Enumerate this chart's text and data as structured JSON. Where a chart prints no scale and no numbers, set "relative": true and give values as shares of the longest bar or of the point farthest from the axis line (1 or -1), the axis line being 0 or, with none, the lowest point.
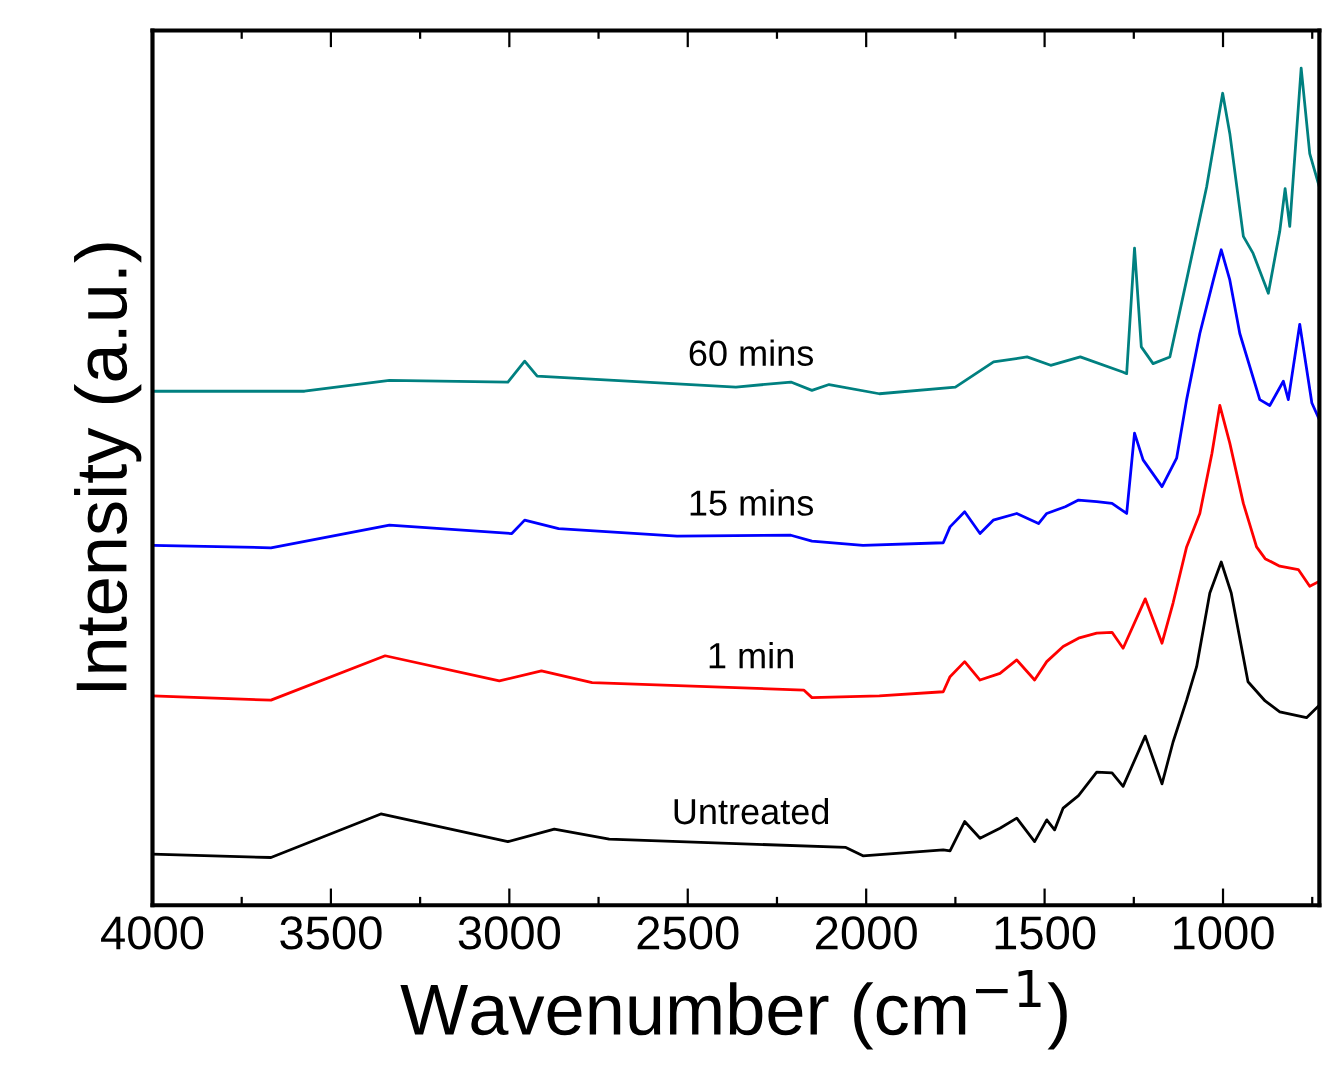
{
  "chart_data": {
    "type": "line",
    "relative": true,
    "xlabel": "Wavenumber (cm$^{−1}$)",
    "ylabel": "Intensity (a.u.)",
    "xlim": [
      4000,
      730
    ],
    "xticks": [
      4000,
      {
        "value": 3750,
        "label": null
      },
      3500,
      {
        "value": 3250,
        "label": null
      },
      3000,
      {
        "value": 2750,
        "label": null
      },
      2500,
      {
        "value": 2250,
        "label": null
      },
      2000,
      {
        "value": 1750,
        "label": null
      },
      1500,
      {
        "value": 1250,
        "label": null
      },
      1000,
      {
        "value": 750,
        "label": null
      }
    ],
    "grid": false,
    "legend": false,
    "tick_labels": "x",
    "series": [
      {
        "name": "Untreated",
        "color": "#000000",
        "x": [
          4000,
          3668,
          3360,
          3004,
          2874,
          2720,
          2057,
          2009,
          1784,
          1765,
          1724,
          1681,
          1625,
          1578,
          1528,
          1494,
          1472,
          1448,
          1405,
          1354,
          1311,
          1280,
          1218,
          1171,
          1140,
          1102,
          1074,
          1037,
          1005,
          977,
          930,
          882,
          841,
          766,
          730
        ],
        "values": [
          0.061,
          0.057,
          0.109,
          0.076,
          0.091,
          0.079,
          0.069,
          0.059,
          0.066,
          0.065,
          0.1,
          0.08,
          0.092,
          0.104,
          0.076,
          0.102,
          0.09,
          0.116,
          0.131,
          0.159,
          0.158,
          0.142,
          0.202,
          0.145,
          0.195,
          0.245,
          0.285,
          0.373,
          0.41,
          0.373,
          0.267,
          0.244,
          0.231,
          0.224,
          0.239
        ]
      },
      {
        "name": "1 min",
        "color": "#ff0000",
        "x": [
          4000,
          3668,
          3348,
          3028,
          2910,
          2768,
          2175,
          2152,
          1963,
          1784,
          1765,
          1724,
          1681,
          1625,
          1578,
          1528,
          1494,
          1448,
          1405,
          1354,
          1311,
          1280,
          1218,
          1171,
          1140,
          1102,
          1065,
          1031,
          1009,
          981,
          943,
          906,
          882,
          841,
          789,
          757,
          730
        ],
        "values": [
          0.25,
          0.245,
          0.298,
          0.268,
          0.28,
          0.266,
          0.257,
          0.248,
          0.25,
          0.255,
          0.273,
          0.291,
          0.269,
          0.277,
          0.293,
          0.269,
          0.291,
          0.309,
          0.319,
          0.325,
          0.326,
          0.307,
          0.366,
          0.313,
          0.361,
          0.428,
          0.468,
          0.54,
          0.597,
          0.552,
          0.48,
          0.428,
          0.414,
          0.405,
          0.401,
          0.381,
          0.387
        ]
      },
      {
        "name": "15 mins",
        "color": "#0000ff",
        "x": [
          4000,
          3668,
          3336,
          2993,
          2957,
          2862,
          2530,
          2211,
          2152,
          2009,
          1784,
          1765,
          1724,
          1681,
          1644,
          1578,
          1517,
          1494,
          1442,
          1405,
          1354,
          1311,
          1270,
          1248,
          1224,
          1171,
          1130,
          1102,
          1065,
          1027,
          1005,
          981,
          953,
          897,
          869,
          831,
          817,
          785,
          751,
          730
        ],
        "values": [
          0.43,
          0.427,
          0.454,
          0.444,
          0.46,
          0.45,
          0.441,
          0.442,
          0.435,
          0.43,
          0.433,
          0.452,
          0.47,
          0.444,
          0.46,
          0.468,
          0.456,
          0.468,
          0.476,
          0.484,
          0.482,
          0.48,
          0.468,
          0.564,
          0.532,
          0.5,
          0.534,
          0.604,
          0.683,
          0.747,
          0.783,
          0.747,
          0.683,
          0.604,
          0.597,
          0.626,
          0.604,
          0.694,
          0.6,
          0.58
        ]
      },
      {
        "name": "60 mins",
        "color": "#008080",
        "x": [
          4000,
          3574,
          3336,
          3004,
          2957,
          2922,
          2365,
          2211,
          2152,
          2104,
          1963,
          1750,
          1643,
          1549,
          1483,
          1400,
          1281,
          1270,
          1248,
          1229,
          1196,
          1149,
          1102,
          1046,
          1001,
          981,
          943,
          916,
          873,
          841,
          826,
          813,
          781,
          757,
          730
        ],
        "values": [
          0.614,
          0.614,
          0.627,
          0.625,
          0.65,
          0.632,
          0.619,
          0.625,
          0.615,
          0.622,
          0.611,
          0.619,
          0.649,
          0.655,
          0.645,
          0.655,
          0.637,
          0.635,
          0.785,
          0.667,
          0.647,
          0.655,
          0.747,
          0.858,
          0.97,
          0.922,
          0.799,
          0.779,
          0.731,
          0.805,
          0.856,
          0.811,
          1.0,
          0.898,
          0.858
        ]
      }
    ]
  }
}
